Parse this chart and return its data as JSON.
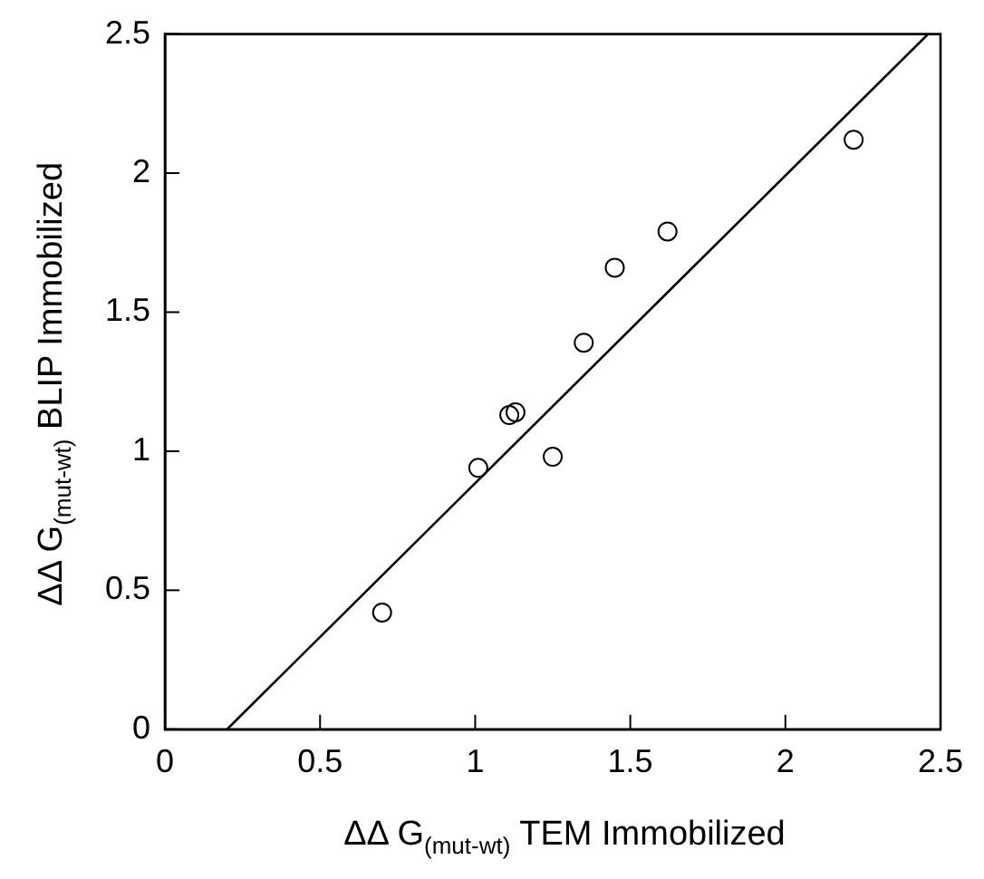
{
  "chart_data": {
    "type": "scatter",
    "xlabel": "ΔΔ G$_{(mut-wt)}$ TEM Immobilized",
    "ylabel": "ΔΔ G$_{(mut-wt)}$ BLIP Immobilized",
    "x": [
      0.7,
      1.01,
      1.11,
      1.13,
      1.25,
      1.35,
      1.45,
      1.62,
      2.22
    ],
    "series": [
      {
        "color": "#000000",
        "marker": "circle",
        "values": [
          0.42,
          0.94,
          1.13,
          1.14,
          0.98,
          1.39,
          1.66,
          1.79,
          2.12
        ]
      },
      {
        "type": "line",
        "color": "#000000",
        "marker": "none",
        "x": [
          0.2,
          2.46
        ],
        "values": [
          0,
          2.5
        ]
      }
    ],
    "xlim": [
      0,
      2.5
    ],
    "ylim": [
      0,
      2.5
    ],
    "xticks": [
      0,
      0.5,
      1,
      1.5,
      2,
      2.5
    ],
    "yticks": [
      0,
      0.5,
      1,
      1.5,
      2,
      2.5
    ],
    "grid": false,
    "legend": false
  }
}
